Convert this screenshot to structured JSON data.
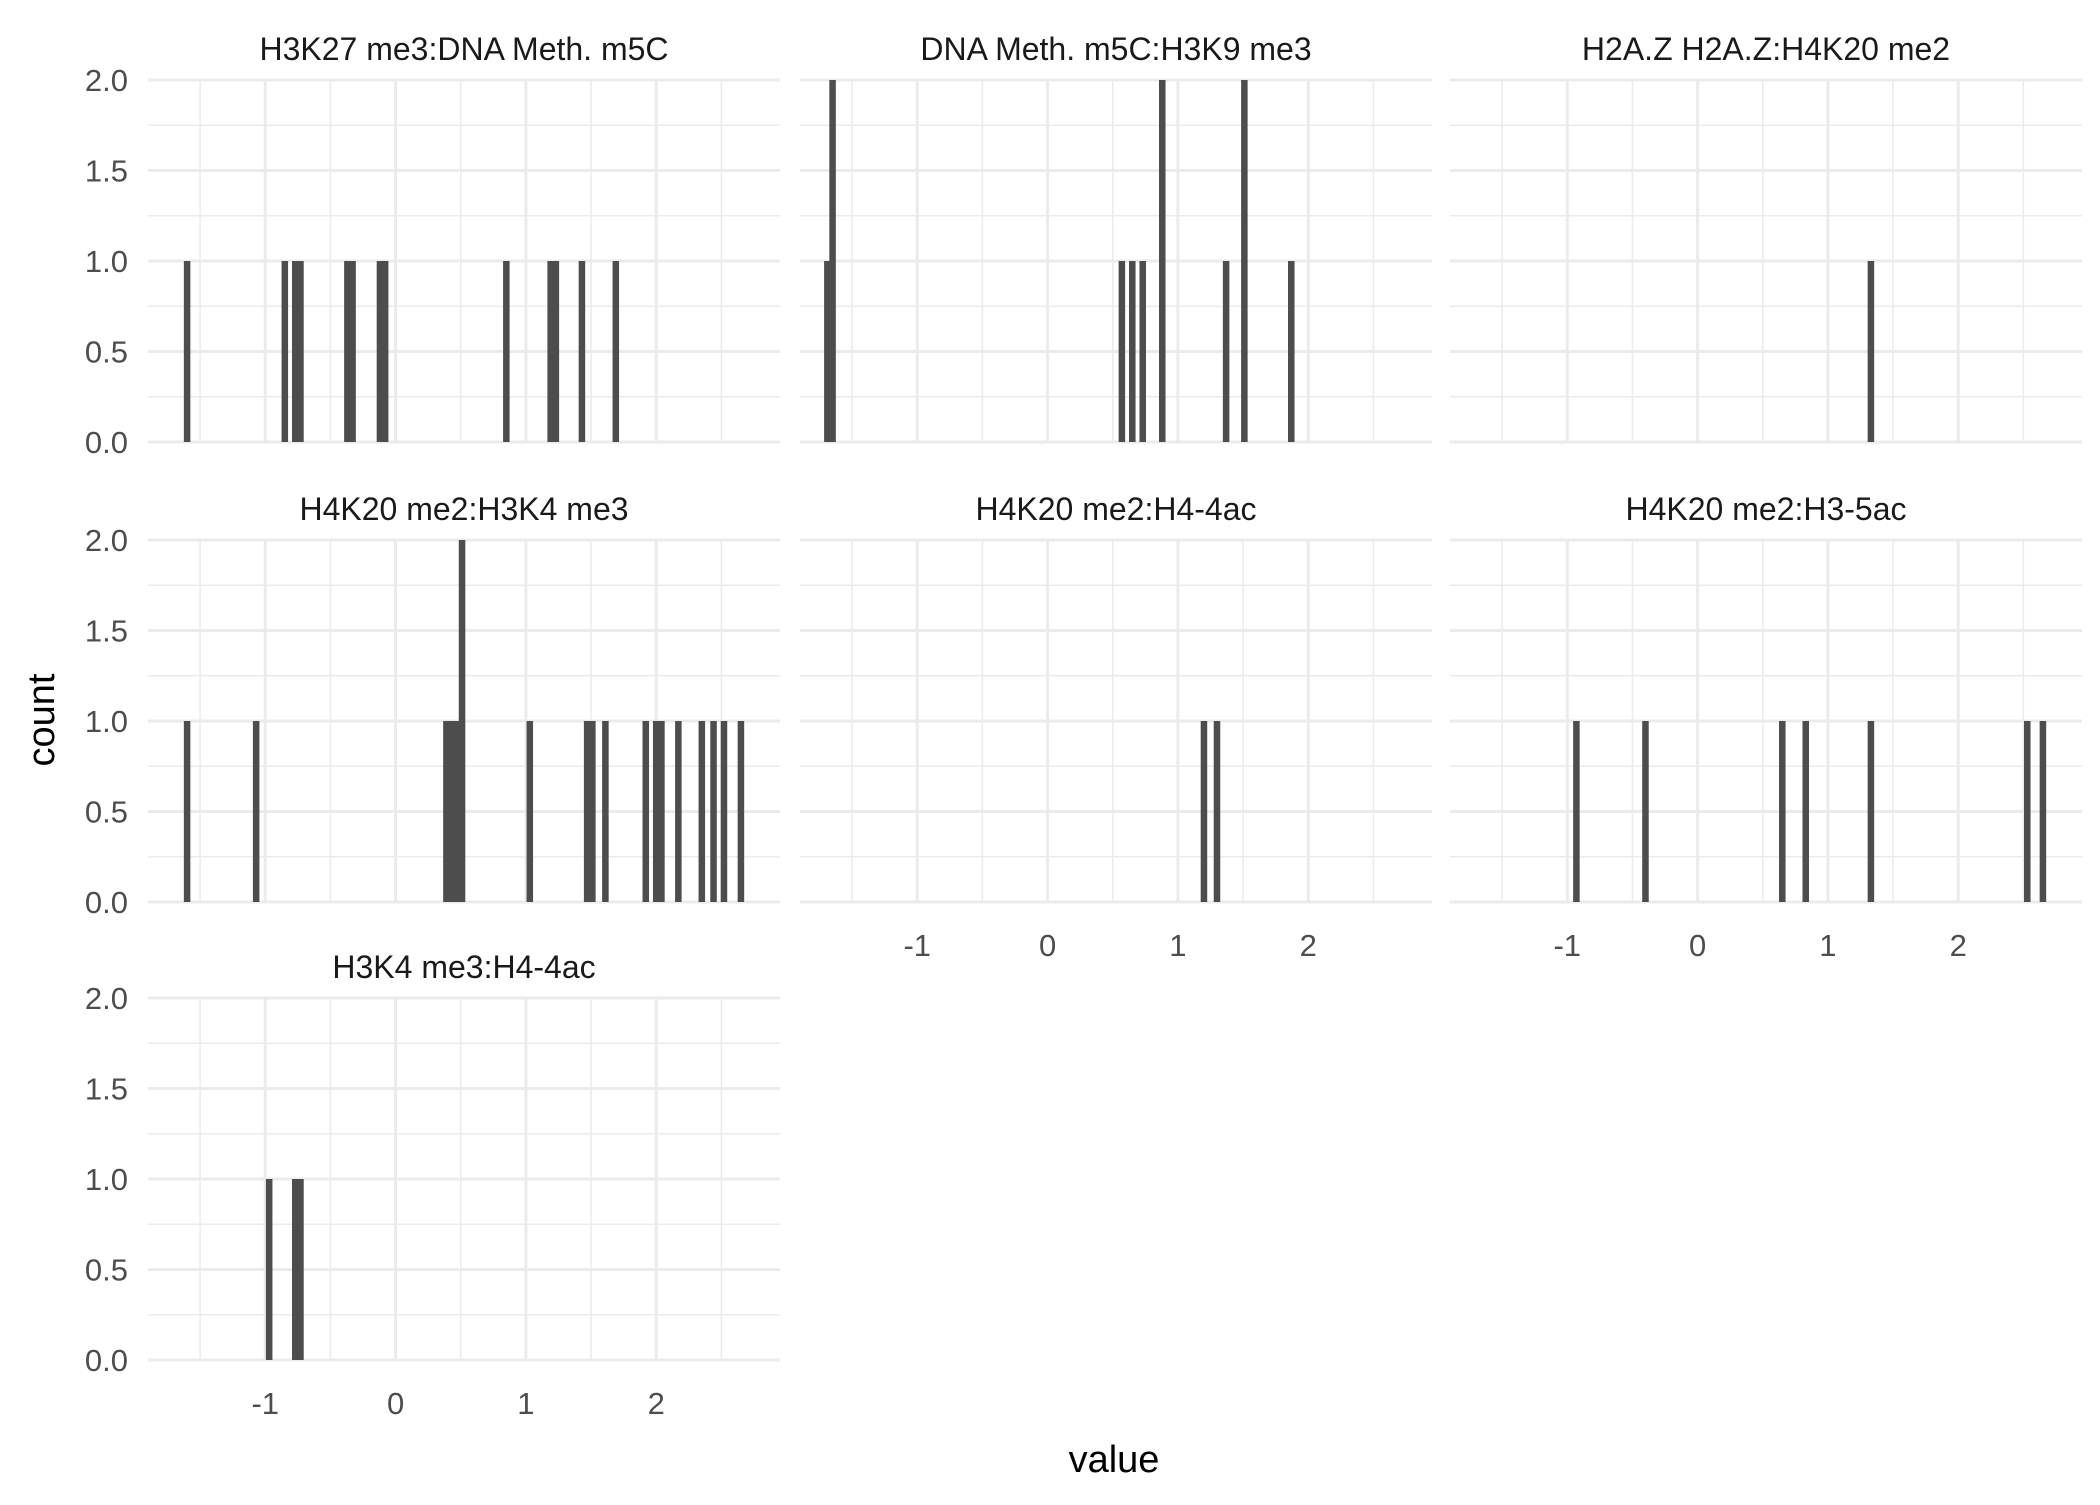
{
  "chart_data": {
    "type": "bar",
    "layout": "facet_wrap",
    "xlabel": "value",
    "ylabel": "count",
    "xlim": [
      -1.9,
      2.95
    ],
    "ylim": [
      0,
      2
    ],
    "x_ticks": [
      -1,
      0,
      1,
      2
    ],
    "x_tick_labels": [
      "-1",
      "0",
      "1",
      "2"
    ],
    "y_ticks": [
      0,
      0.5,
      1,
      1.5,
      2
    ],
    "y_tick_labels": [
      "0.0",
      "0.5",
      "1.0",
      "1.5",
      "2.0"
    ],
    "bin_width": 0.05,
    "bar_color": "#4d4d4d",
    "grid": true,
    "legend": "none",
    "facets": [
      {
        "title": "H3K27 me3:DNA Meth. m5C",
        "bins": [
          [
            -1.6,
            1
          ],
          [
            -0.85,
            1
          ],
          [
            -0.77,
            1
          ],
          [
            -0.73,
            1
          ],
          [
            -0.37,
            1
          ],
          [
            -0.33,
            1
          ],
          [
            -0.12,
            1
          ],
          [
            -0.08,
            1
          ],
          [
            0.85,
            1
          ],
          [
            1.19,
            1
          ],
          [
            1.23,
            1
          ],
          [
            1.43,
            1
          ],
          [
            1.69,
            1
          ]
        ]
      },
      {
        "title": "DNA Meth. m5C:H3K9 me3",
        "bins": [
          [
            -1.69,
            1
          ],
          [
            -1.65,
            2
          ],
          [
            0.57,
            1
          ],
          [
            0.65,
            1
          ],
          [
            0.73,
            1
          ],
          [
            0.88,
            2
          ],
          [
            1.37,
            1
          ],
          [
            1.51,
            2
          ],
          [
            1.87,
            1
          ]
        ]
      },
      {
        "title": "H2A.Z H2A.Z:H4K20 me2",
        "bins": [
          [
            1.33,
            1
          ]
        ]
      },
      {
        "title": "H4K20 me2:H3K4 me3",
        "bins": [
          [
            -1.6,
            1
          ],
          [
            -1.07,
            1
          ],
          [
            0.39,
            1
          ],
          [
            0.43,
            1
          ],
          [
            0.47,
            1
          ],
          [
            0.51,
            2
          ],
          [
            1.03,
            1
          ],
          [
            1.47,
            1
          ],
          [
            1.51,
            1
          ],
          [
            1.61,
            1
          ],
          [
            1.92,
            1
          ],
          [
            2.0,
            1
          ],
          [
            2.04,
            1
          ],
          [
            2.17,
            1
          ],
          [
            2.35,
            1
          ],
          [
            2.44,
            1
          ],
          [
            2.52,
            1
          ],
          [
            2.65,
            1
          ]
        ]
      },
      {
        "title": "H4K20 me2:H4-4ac",
        "bins": [
          [
            1.2,
            1
          ],
          [
            1.3,
            1
          ]
        ]
      },
      {
        "title": "H4K20 me2:H3-5ac",
        "bins": [
          [
            -0.93,
            1
          ],
          [
            -0.4,
            1
          ],
          [
            0.65,
            1
          ],
          [
            0.83,
            1
          ],
          [
            1.33,
            1
          ],
          [
            2.53,
            1
          ],
          [
            2.65,
            1
          ]
        ]
      },
      {
        "title": "H3K4 me3:H4-4ac",
        "bins": [
          [
            -0.97,
            1
          ],
          [
            -0.77,
            1
          ],
          [
            -0.73,
            1
          ]
        ]
      }
    ]
  }
}
